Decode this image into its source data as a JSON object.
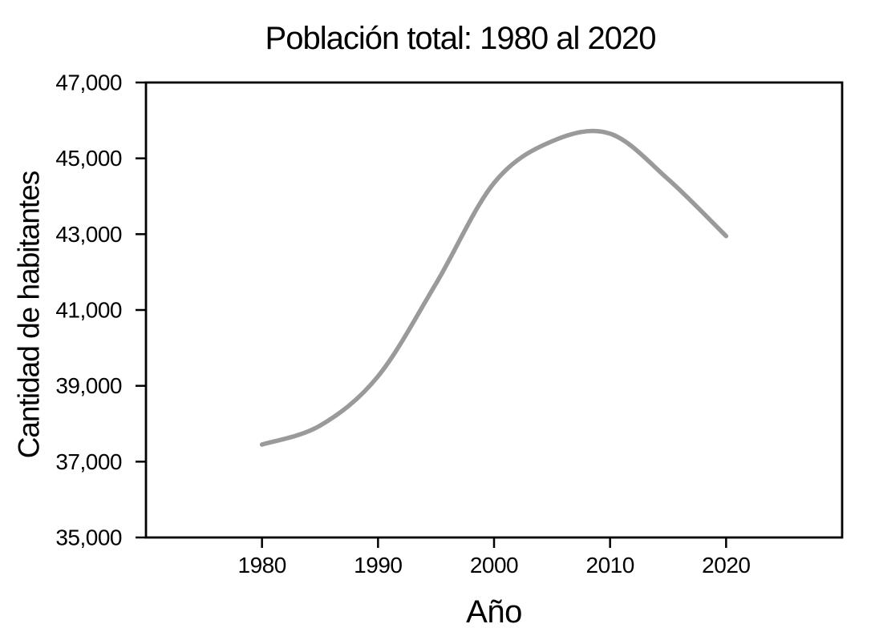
{
  "chart_data": {
    "type": "line",
    "title": "Población total: 1980 al 2020",
    "xlabel": "Año",
    "ylabel": "Cantidad de habitantes",
    "x": [
      1980,
      1985,
      1990,
      1995,
      2000,
      2005,
      2010,
      2015,
      2020
    ],
    "values": [
      37450,
      37950,
      39250,
      41700,
      44350,
      45450,
      45650,
      44450,
      42950
    ],
    "series_note": "single smoothed line; values estimated from axis gridlines",
    "smooth": true,
    "xlim": [
      1970,
      2030
    ],
    "ylim": [
      35000,
      47000
    ],
    "x_ticks": [
      1980,
      1990,
      2000,
      2010,
      2020
    ],
    "x_tick_labels": [
      "1980",
      "1990",
      "2000",
      "2010",
      "2020"
    ],
    "y_ticks": [
      35000,
      37000,
      39000,
      41000,
      43000,
      45000,
      47000
    ],
    "y_tick_labels": [
      "35,000",
      "37,000",
      "39,000",
      "41,000",
      "43,000",
      "45,000",
      "47,000"
    ],
    "grid": false,
    "legend": null,
    "line_color": "#9a9a9a",
    "line_width": 5.5,
    "axis_color": "#000000",
    "background_color": "#ffffff"
  }
}
